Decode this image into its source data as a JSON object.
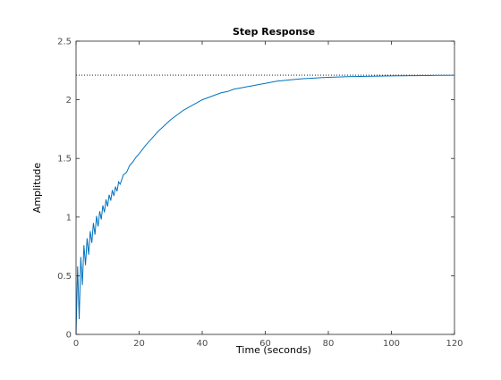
{
  "chart_data": {
    "type": "line",
    "title": "Step Response",
    "xlabel": "Time (seconds)",
    "ylabel": "Amplitude",
    "xlim": [
      0,
      120
    ],
    "ylim": [
      0,
      2.5
    ],
    "xticks": [
      0,
      20,
      40,
      60,
      80,
      100,
      120
    ],
    "yticks": [
      0,
      0.5,
      1,
      1.5,
      2,
      2.5
    ],
    "xtick_labels": [
      "0",
      "20",
      "40",
      "60",
      "80",
      "100",
      "120"
    ],
    "ytick_labels": [
      "0",
      "0.5",
      "1",
      "1.5",
      "2",
      "2.5"
    ],
    "grid": false,
    "steady_state": 2.21,
    "series": [
      {
        "color": "#0072BD",
        "x": [
          0,
          0.5,
          1,
          1.5,
          2,
          2.5,
          3,
          3.5,
          4,
          4.5,
          5,
          5.5,
          6,
          6.5,
          7,
          7.5,
          8,
          8.5,
          9,
          9.5,
          10,
          10.5,
          11,
          11.5,
          12,
          12.5,
          13,
          13.5,
          14,
          15,
          16,
          17,
          18,
          19,
          20,
          22,
          24,
          26,
          28,
          30,
          32,
          34,
          36,
          38,
          40,
          42,
          44,
          46,
          48,
          50,
          52,
          54,
          56,
          58,
          60,
          62,
          64,
          66,
          68,
          70,
          72,
          74,
          76,
          78,
          80,
          82,
          84,
          86,
          88,
          90,
          92,
          94,
          96,
          98,
          100,
          102,
          104,
          106,
          108,
          110,
          112,
          114,
          116,
          118,
          120
        ],
        "y": [
          0,
          0.58,
          0.13,
          0.66,
          0.42,
          0.76,
          0.59,
          0.82,
          0.68,
          0.88,
          0.78,
          0.95,
          0.85,
          1.01,
          0.92,
          1.05,
          0.98,
          1.1,
          1.04,
          1.15,
          1.09,
          1.19,
          1.14,
          1.23,
          1.18,
          1.26,
          1.22,
          1.3,
          1.28,
          1.36,
          1.38,
          1.44,
          1.47,
          1.51,
          1.54,
          1.61,
          1.67,
          1.73,
          1.78,
          1.83,
          1.87,
          1.91,
          1.94,
          1.97,
          2.0,
          2.02,
          2.04,
          2.06,
          2.07,
          2.09,
          2.1,
          2.11,
          2.12,
          2.13,
          2.14,
          2.15,
          2.16,
          2.165,
          2.17,
          2.175,
          2.18,
          2.183,
          2.186,
          2.189,
          2.191,
          2.193,
          2.195,
          2.197,
          2.198,
          2.199,
          2.2,
          2.201,
          2.202,
          2.203,
          2.204,
          2.205,
          2.205,
          2.206,
          2.206,
          2.207,
          2.207,
          2.208,
          2.208,
          2.208,
          2.209
        ]
      }
    ]
  }
}
